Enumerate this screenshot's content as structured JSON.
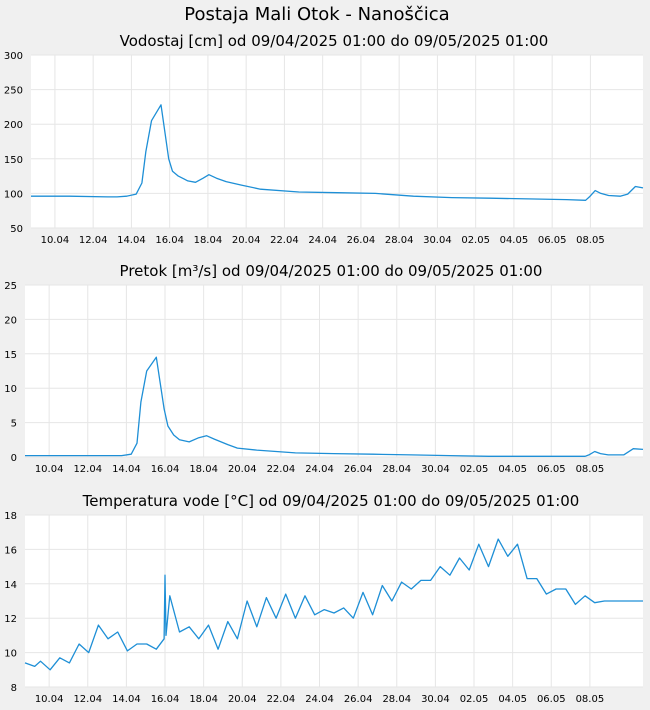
{
  "title": "Postaja Mali Otok - Nanoščica",
  "colors": {
    "line": "#1e8fd6",
    "plot_bg": "#ffffff",
    "grid": "#e6e6e6",
    "page_bg": "#f0f0f0"
  },
  "chart_data": [
    {
      "type": "line",
      "title": "Vodostaj [cm] od 09/04/2025 01:00 do 09/05/2025 01:00",
      "xlabel": "",
      "ylabel": "",
      "ylim": [
        50,
        300
      ],
      "yticks": [
        50,
        100,
        150,
        200,
        250,
        300
      ],
      "xticks": [
        "10.04",
        "12.04",
        "14.04",
        "16.04",
        "18.04",
        "20.04",
        "22.04",
        "24.04",
        "26.04",
        "28.04",
        "30.04",
        "02.05",
        "04.05",
        "06.05",
        "08.05"
      ],
      "grid": true,
      "series": [
        {
          "x_day": [
            0,
            2,
            4,
            4.5,
            5,
            5.5,
            5.8,
            6,
            6.3,
            6.8,
            7.2,
            7.4,
            7.7,
            8,
            8.2,
            8.6,
            9,
            9.3,
            9.7,
            10.2,
            11,
            12,
            14,
            16,
            18,
            20,
            22,
            24,
            26,
            28,
            29,
            29.2,
            29.5,
            29.8,
            30.2,
            30.8,
            31.2,
            31.6,
            32
          ],
          "values": [
            96,
            96,
            95,
            95,
            96,
            99,
            115,
            160,
            205,
            228,
            150,
            132,
            125,
            121,
            118,
            116,
            122,
            127,
            122,
            117,
            112,
            106,
            102,
            101,
            100,
            96,
            94,
            93,
            92,
            91,
            90,
            95,
            104,
            100,
            97,
            96,
            99,
            110,
            108
          ]
        }
      ]
    },
    {
      "type": "line",
      "title": "Pretok [m³/s] od 09/04/2025 01:00 do 09/05/2025 01:00",
      "xlabel": "",
      "ylabel": "",
      "ylim": [
        0,
        25
      ],
      "yticks": [
        0,
        5,
        10,
        15,
        20,
        25
      ],
      "xticks": [
        "10.04",
        "12.04",
        "14.04",
        "16.04",
        "18.04",
        "20.04",
        "22.04",
        "24.04",
        "26.04",
        "28.04",
        "30.04",
        "02.05",
        "04.05",
        "06.05",
        "08.05"
      ],
      "grid": true,
      "series": [
        {
          "x_day": [
            0,
            4,
            5,
            5.5,
            5.8,
            6,
            6.3,
            6.8,
            7.2,
            7.4,
            7.7,
            8,
            8.5,
            9,
            9.4,
            9.8,
            10.5,
            11,
            12,
            13,
            14,
            16,
            18,
            20,
            22,
            24,
            26,
            28,
            29,
            29.2,
            29.5,
            29.8,
            30.2,
            31,
            31.5,
            32
          ],
          "values": [
            0.2,
            0.2,
            0.2,
            0.4,
            2,
            8,
            12.5,
            14.5,
            7,
            4.5,
            3.2,
            2.5,
            2.2,
            2.8,
            3.1,
            2.6,
            1.8,
            1.3,
            1,
            0.8,
            0.6,
            0.5,
            0.4,
            0.3,
            0.2,
            0.1,
            0.1,
            0.1,
            0.1,
            0.3,
            0.8,
            0.5,
            0.3,
            0.3,
            1.2,
            1.1
          ]
        }
      ]
    },
    {
      "type": "line",
      "title": "Temperatura vode [°C] od 09/04/2025 01:00 do 09/05/2025 01:00",
      "xlabel": "",
      "ylabel": "",
      "ylim": [
        8,
        18
      ],
      "yticks": [
        8,
        10,
        12,
        14,
        16,
        18
      ],
      "xticks": [
        "10.04",
        "12.04",
        "14.04",
        "16.04",
        "18.04",
        "20.04",
        "22.04",
        "24.04",
        "26.04",
        "28.04",
        "30.04",
        "02.05",
        "04.05",
        "06.05",
        "08.05"
      ],
      "grid": true,
      "series": [
        {
          "x_day": [
            0,
            0.5,
            0.8,
            1.3,
            1.8,
            2.3,
            2.8,
            3.3,
            3.8,
            4.3,
            4.8,
            5.3,
            5.8,
            6.3,
            6.8,
            7.2,
            7.25,
            7.3,
            7.5,
            8,
            8.5,
            9,
            9.5,
            10,
            10.5,
            11,
            11.5,
            12,
            12.5,
            13,
            13.5,
            14,
            14.5,
            15,
            15.5,
            16,
            16.5,
            17,
            17.5,
            18,
            18.5,
            19,
            19.5,
            20,
            20.5,
            21,
            21.5,
            22,
            22.5,
            23,
            23.5,
            24,
            24.5,
            25,
            25.5,
            26,
            26.5,
            27,
            27.5,
            28,
            28.5,
            29,
            29.5,
            30,
            30.5,
            31,
            31.5,
            32
          ],
          "values": [
            9.4,
            9.2,
            9.5,
            9,
            9.7,
            9.4,
            10.5,
            10,
            11.6,
            10.8,
            11.2,
            10.1,
            10.5,
            10.5,
            10.2,
            10.8,
            14.5,
            11,
            13.3,
            11.2,
            11.5,
            10.8,
            11.6,
            10.2,
            11.8,
            10.8,
            13,
            11.5,
            13.2,
            12,
            13.4,
            12,
            13.3,
            12.2,
            12.5,
            12.3,
            12.6,
            12,
            13.5,
            12.2,
            13.9,
            13,
            14.1,
            13.7,
            14.2,
            14.2,
            15,
            14.5,
            15.5,
            14.8,
            16.3,
            15,
            16.6,
            15.6,
            16.3,
            14.3,
            14.3,
            13.4,
            13.7,
            13.7,
            12.8,
            13.3,
            12.9,
            13,
            13,
            13,
            13,
            13
          ]
        }
      ]
    }
  ]
}
